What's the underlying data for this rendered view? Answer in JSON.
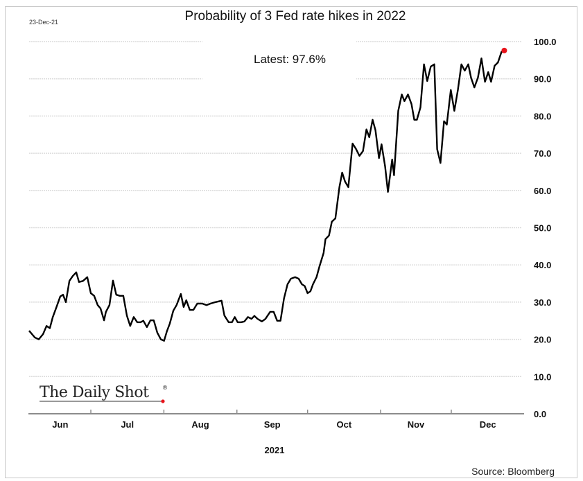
{
  "chart_data": {
    "type": "line",
    "title": "Probability of 3 Fed rate hikes in 2022",
    "date_stamp": "23-Dec-21",
    "annotation": "Latest:  97.6%",
    "xlabel": "2021",
    "ylabel": "",
    "source": "Source: Bloomberg",
    "logo": "The Daily Shot®",
    "x_unit": "days since 2021-06-01",
    "xlim": [
      3.8,
      213.9
    ],
    "ylim": [
      0,
      100
    ],
    "yticks": [
      0,
      10,
      20,
      30,
      40,
      50,
      60,
      70,
      80,
      90,
      100
    ],
    "ytick_labels": [
      "0.0",
      "10.0",
      "20.0",
      "30.0",
      "40.0",
      "50.0",
      "60.0",
      "70.0",
      "80.0",
      "90.0",
      "100.0"
    ],
    "month_ticks": [
      30,
      61,
      92,
      122,
      153,
      183
    ],
    "month_labels": [
      {
        "label": "Jun",
        "center": 17
      },
      {
        "label": "Jul",
        "center": 45.5
      },
      {
        "label": "Aug",
        "center": 76.5
      },
      {
        "label": "Sep",
        "center": 107
      },
      {
        "label": "Oct",
        "center": 137.5
      },
      {
        "label": "Nov",
        "center": 168
      },
      {
        "label": "Dec",
        "center": 198.5
      }
    ],
    "grid": true,
    "line_color": "#000000",
    "latest_marker_color": "#e8141b",
    "series": [
      {
        "name": "Probability of 3 Fed rate hikes in 2022",
        "x": [
          3.8,
          6.2,
          7.9,
          9.7,
          11.2,
          12.6,
          13.8,
          15.6,
          17.0,
          18.2,
          19.4,
          20.9,
          22.3,
          23.8,
          25.0,
          26.7,
          28.5,
          30.0,
          31.4,
          32.9,
          34.1,
          35.6,
          36.4,
          37.9,
          39.4,
          40.8,
          42.3,
          43.8,
          45.3,
          46.7,
          48.2,
          49.7,
          51.1,
          52.3,
          53.8,
          55.3,
          56.7,
          58.2,
          59.7,
          61.1,
          62.3,
          63.5,
          65.0,
          66.4,
          68.2,
          69.4,
          70.5,
          72.0,
          73.5,
          75.2,
          77.3,
          79.1,
          80.8,
          82.9,
          85.5,
          86.7,
          88.5,
          89.9,
          91.1,
          92.3,
          93.8,
          95.2,
          96.7,
          98.2,
          99.4,
          100.8,
          102.6,
          104.1,
          106.1,
          107.6,
          109.1,
          110.5,
          112.0,
          113.5,
          114.9,
          116.7,
          118.2,
          119.6,
          120.8,
          122.0,
          123.2,
          124.3,
          125.8,
          127.0,
          128.8,
          129.6,
          131.1,
          132.3,
          133.8,
          135.5,
          136.7,
          137.9,
          139.3,
          141.1,
          142.6,
          144.0,
          145.5,
          147.0,
          148.2,
          149.6,
          150.8,
          152.3,
          153.4,
          154.9,
          156.1,
          157.9,
          158.7,
          160.5,
          162.0,
          163.1,
          164.6,
          166.1,
          167.3,
          168.4,
          169.9,
          171.4,
          172.8,
          174.3,
          175.8,
          177.0,
          178.4,
          179.9,
          181.1,
          182.8,
          184.3,
          185.8,
          187.3,
          188.7,
          190.2,
          191.4,
          192.8,
          194.3,
          195.8,
          197.3,
          198.7,
          199.9,
          201.4,
          202.8,
          204.3,
          205.5
        ],
        "y": [
          22.3,
          20.5,
          20.0,
          21.4,
          23.6,
          23.0,
          25.9,
          29.0,
          31.5,
          32.0,
          30.0,
          35.7,
          37.0,
          38.0,
          35.4,
          35.7,
          36.7,
          32.4,
          31.7,
          29.2,
          28.3,
          25.1,
          27.4,
          29.2,
          35.8,
          32.0,
          31.7,
          31.7,
          26.4,
          23.6,
          26.0,
          24.6,
          24.6,
          25.0,
          23.3,
          25.1,
          25.1,
          21.8,
          20.0,
          19.6,
          22.2,
          24.2,
          27.7,
          29.2,
          32.2,
          28.7,
          30.5,
          27.9,
          27.9,
          29.6,
          29.6,
          29.2,
          29.6,
          30.0,
          30.4,
          26.4,
          24.6,
          24.6,
          26.0,
          24.6,
          24.6,
          24.8,
          26.0,
          25.5,
          26.3,
          25.5,
          24.8,
          25.5,
          27.4,
          27.4,
          25.0,
          25.0,
          31.0,
          34.8,
          36.3,
          36.7,
          36.3,
          34.8,
          34.3,
          32.4,
          32.9,
          34.8,
          36.7,
          39.5,
          43.2,
          46.9,
          47.9,
          51.6,
          52.5,
          60.9,
          64.8,
          62.4,
          60.9,
          72.6,
          71.1,
          69.3,
          70.6,
          76.4,
          74.3,
          79.0,
          76.2,
          68.7,
          72.4,
          66.5,
          59.6,
          68.3,
          64.1,
          81.4,
          85.8,
          84.0,
          85.8,
          83.2,
          79.0,
          79.0,
          82.3,
          93.9,
          89.4,
          93.3,
          93.9,
          71.1,
          67.4,
          78.6,
          77.7,
          87.0,
          81.4,
          87.0,
          93.9,
          92.2,
          93.9,
          90.3,
          87.7,
          90.3,
          95.5,
          89.2,
          91.8,
          89.2,
          93.5,
          94.4,
          97.2,
          97.6
        ]
      }
    ]
  }
}
